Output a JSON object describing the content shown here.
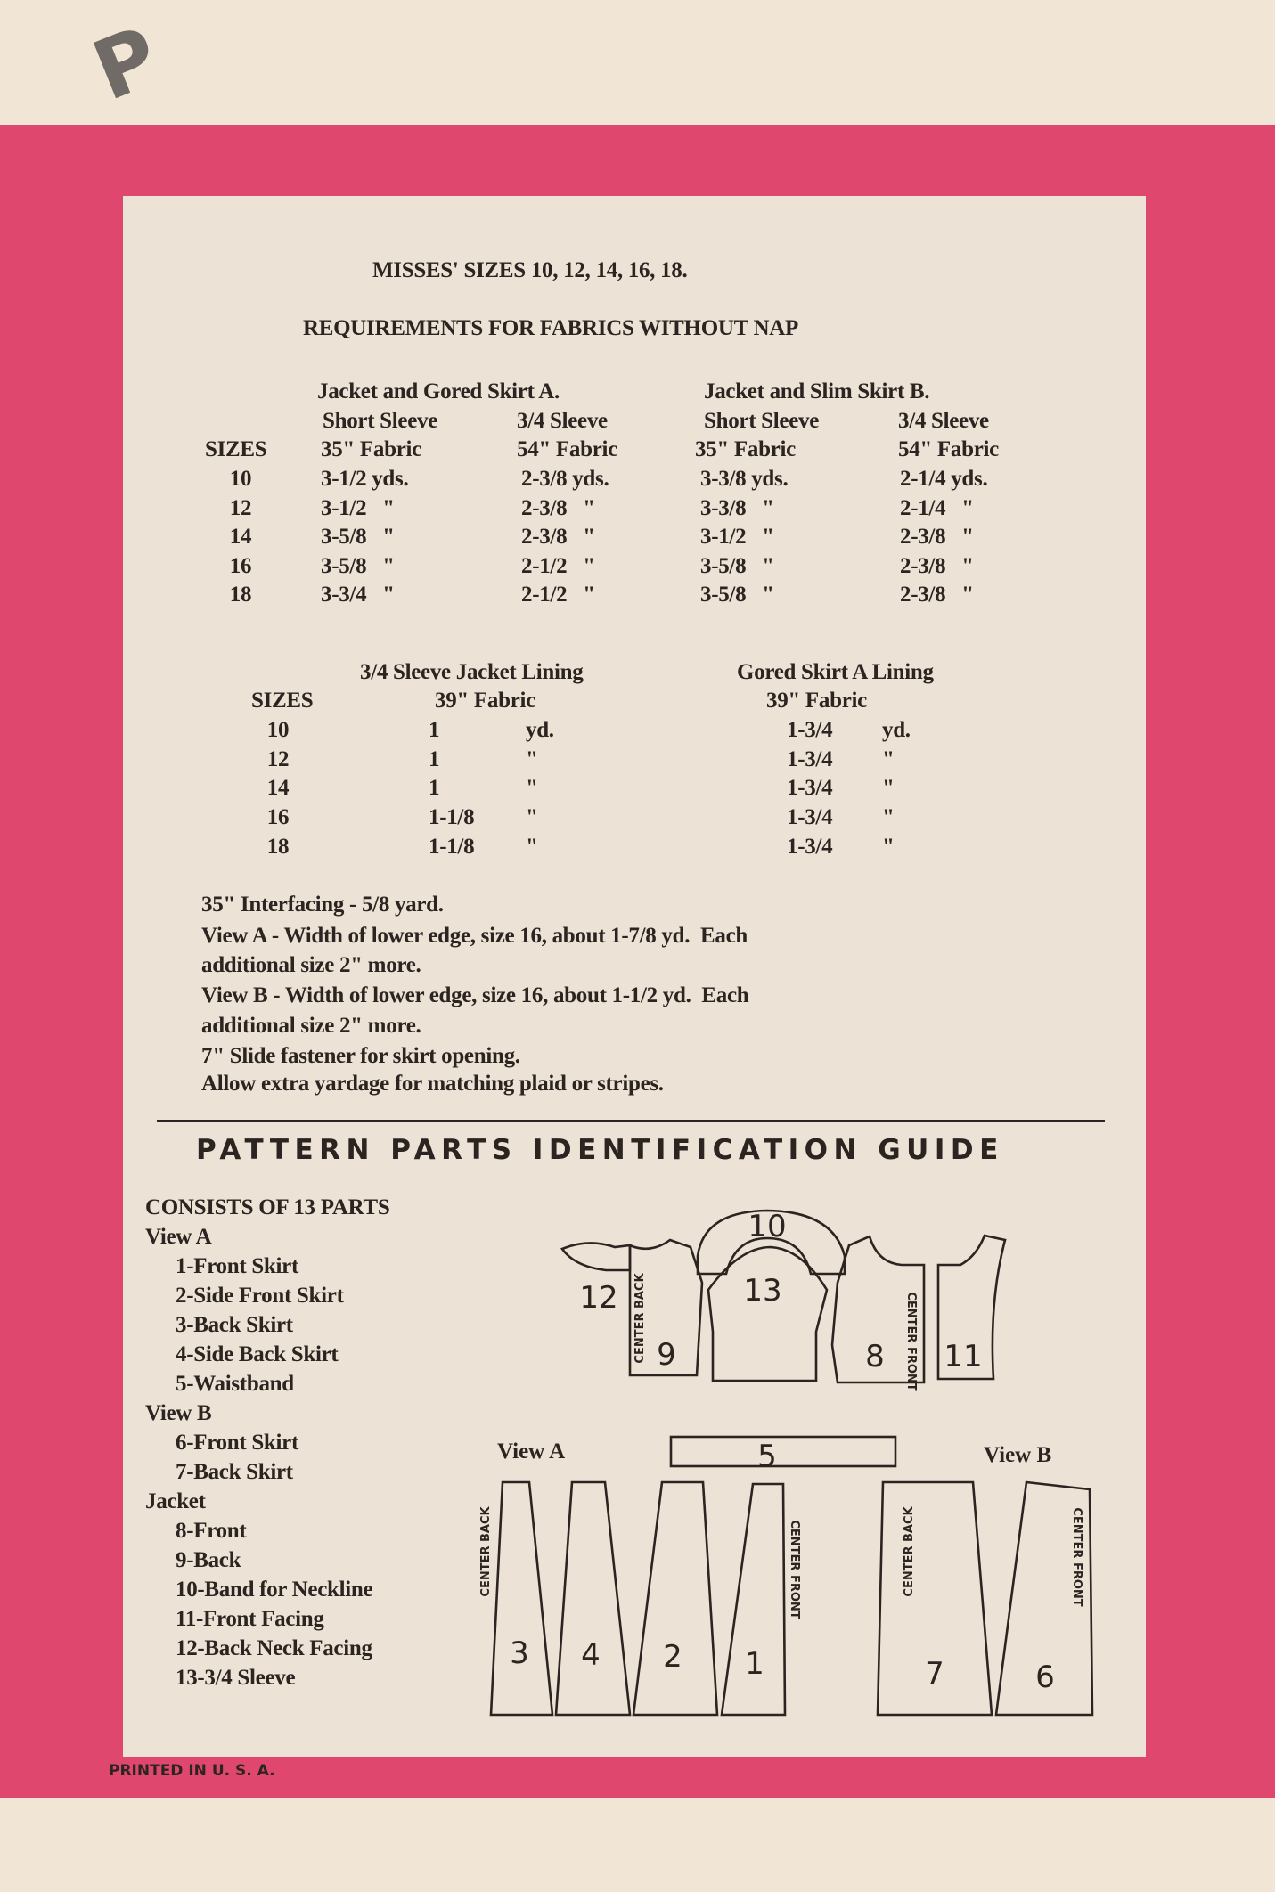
{
  "stamp_letter": "P",
  "colors": {
    "border": "#e0476f",
    "card": "#ece2d5",
    "ink": "#2b2420"
  },
  "title": "MISSES' SIZES 10, 12, 14, 16, 18.",
  "requirements_heading": "REQUIREMENTS FOR FABRICS WITHOUT NAP",
  "fabric_table": {
    "groups": [
      "Jacket and Gored Skirt A.",
      "Jacket and Slim Skirt B."
    ],
    "sleeves": [
      "Short Sleeve",
      "3/4 Sleeve",
      "Short Sleeve",
      "3/4 Sleeve"
    ],
    "sizes_header": "SIZES",
    "fabrics": [
      "35\" Fabric",
      "54\" Fabric",
      "35\" Fabric",
      "54\" Fabric"
    ],
    "rows": [
      {
        "size": "10",
        "values": [
          "3-1/2 yds.",
          "2-3/8 yds.",
          "3-3/8 yds.",
          "2-1/4 yds."
        ]
      },
      {
        "size": "12",
        "values": [
          "3-1/2   \"",
          "2-3/8   \"",
          "3-3/8   \"",
          "2-1/4   \""
        ]
      },
      {
        "size": "14",
        "values": [
          "3-5/8   \"",
          "2-3/8   \"",
          "3-1/2   \"",
          "2-3/8   \""
        ]
      },
      {
        "size": "16",
        "values": [
          "3-5/8   \"",
          "2-1/2   \"",
          "3-5/8   \"",
          "2-3/8   \""
        ]
      },
      {
        "size": "18",
        "values": [
          "3-3/4   \"",
          "2-1/2   \"",
          "3-5/8   \"",
          "2-3/8   \""
        ]
      }
    ]
  },
  "lining_table": {
    "headers": [
      "3/4 Sleeve Jacket Lining",
      "Gored Skirt A Lining"
    ],
    "sizes_header": "SIZES",
    "fabrics": [
      "39\" Fabric",
      "39\" Fabric"
    ],
    "rows": [
      {
        "size": "10",
        "a": "1",
        "a_unit": "yd.",
        "b": "1-3/4",
        "b_unit": "yd."
      },
      {
        "size": "12",
        "a": "1",
        "a_unit": "\"",
        "b": "1-3/4",
        "b_unit": "\""
      },
      {
        "size": "14",
        "a": "1",
        "a_unit": "\"",
        "b": "1-3/4",
        "b_unit": "\""
      },
      {
        "size": "16",
        "a": "1-1/8",
        "a_unit": "\"",
        "b": "1-3/4",
        "b_unit": "\""
      },
      {
        "size": "18",
        "a": "1-1/8",
        "a_unit": "\"",
        "b": "1-3/4",
        "b_unit": "\""
      }
    ]
  },
  "notes": [
    "35\" Interfacing - 5/8 yard.",
    "View A - Width of lower edge, size 16, about 1-7/8 yd.  Each",
    "additional size 2\" more.",
    "View B - Width of lower edge, size 16, about 1-1/2 yd.  Each",
    "additional size 2\" more.",
    "7\" Slide fastener for skirt opening.",
    "Allow extra yardage for matching plaid or stripes."
  ],
  "guide_heading": "PATTERN PARTS IDENTIFICATION GUIDE",
  "parts": {
    "consists": "CONSISTS OF 13 PARTS",
    "sections": [
      {
        "title": "View A",
        "items": [
          "1-Front Skirt",
          "2-Side Front Skirt",
          "3-Back Skirt",
          "4-Side Back Skirt",
          "5-Waistband"
        ]
      },
      {
        "title": "View B",
        "items": [
          "6-Front Skirt",
          "7-Back Skirt"
        ]
      },
      {
        "title": "Jacket",
        "items": [
          "8-Front",
          "9-Back",
          "10-Band for Neckline",
          "11-Front Facing",
          "12-Back Neck Facing",
          "13-3/4 Sleeve"
        ]
      }
    ]
  },
  "diagram": {
    "view_a": "View A",
    "view_b": "View B",
    "center_back": "CENTER BACK",
    "center_front": "CENTER FRONT",
    "numbers": {
      "p1": "1",
      "p2": "2",
      "p3": "3",
      "p4": "4",
      "p5": "5",
      "p6": "6",
      "p7": "7",
      "p8": "8",
      "p9": "9",
      "p10": "10",
      "p11": "11",
      "p12": "12",
      "p13": "13"
    }
  },
  "footer": "PRINTED IN U. S. A."
}
